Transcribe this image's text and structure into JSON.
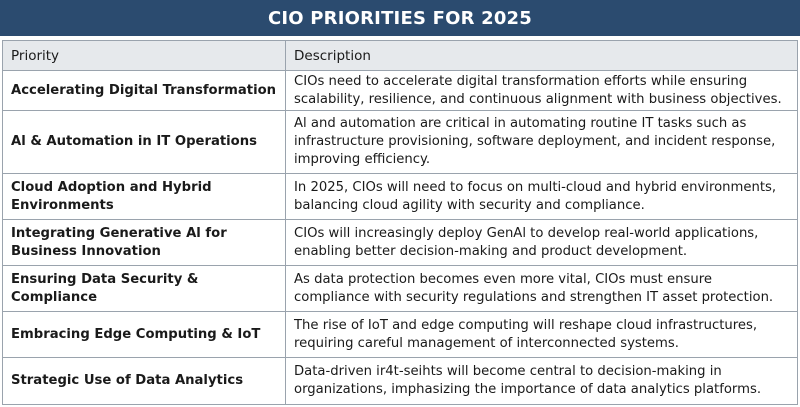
{
  "banner": {
    "title": "CIO PRIORITIES FOR 2025"
  },
  "table": {
    "headers": {
      "priority": "Priority",
      "description": "Description"
    },
    "rows": [
      {
        "priority": "Accelerating Digital Transformation",
        "description": "CIOs need to accelerate digital transformation efforts while ensuring scalability, resilience, and continuous alignment with business objectives."
      },
      {
        "priority": "Al & Automation in IT Operations",
        "description": "Al and automation are critical in automating routine IT tasks such as infrastructure provisioning, software deployment, and incident response, improving efficiency."
      },
      {
        "priority": "Cloud Adoption and Hybrid Environments",
        "description": "In 2025, CIOs will need to focus on multi-cloud and hybrid environments, balancing cloud agility with security and compliance."
      },
      {
        "priority": "Integrating Generative Al for Business Innovation",
        "description": "CIOs will increasingly deploy GenAl to develop real-world applications, enabling better decision-making and product development."
      },
      {
        "priority": "Ensuring Data Security & Compliance",
        "description": "As data protection becomes even more vital, CIOs must ensure compliance with security regulations and strengthen IT asset protection."
      },
      {
        "priority": "Embracing Edge Computing & IoT",
        "description": "The rise of IoT and edge computing will reshape cloud infrastructures, requiring careful management of interconnected systems."
      },
      {
        "priority": "Strategic Use of Data Analytics",
        "description": "Data-driven ir4t-seihts will become central to decision-making in organizations, imphasizing the importance of data analytics platforms."
      }
    ]
  }
}
